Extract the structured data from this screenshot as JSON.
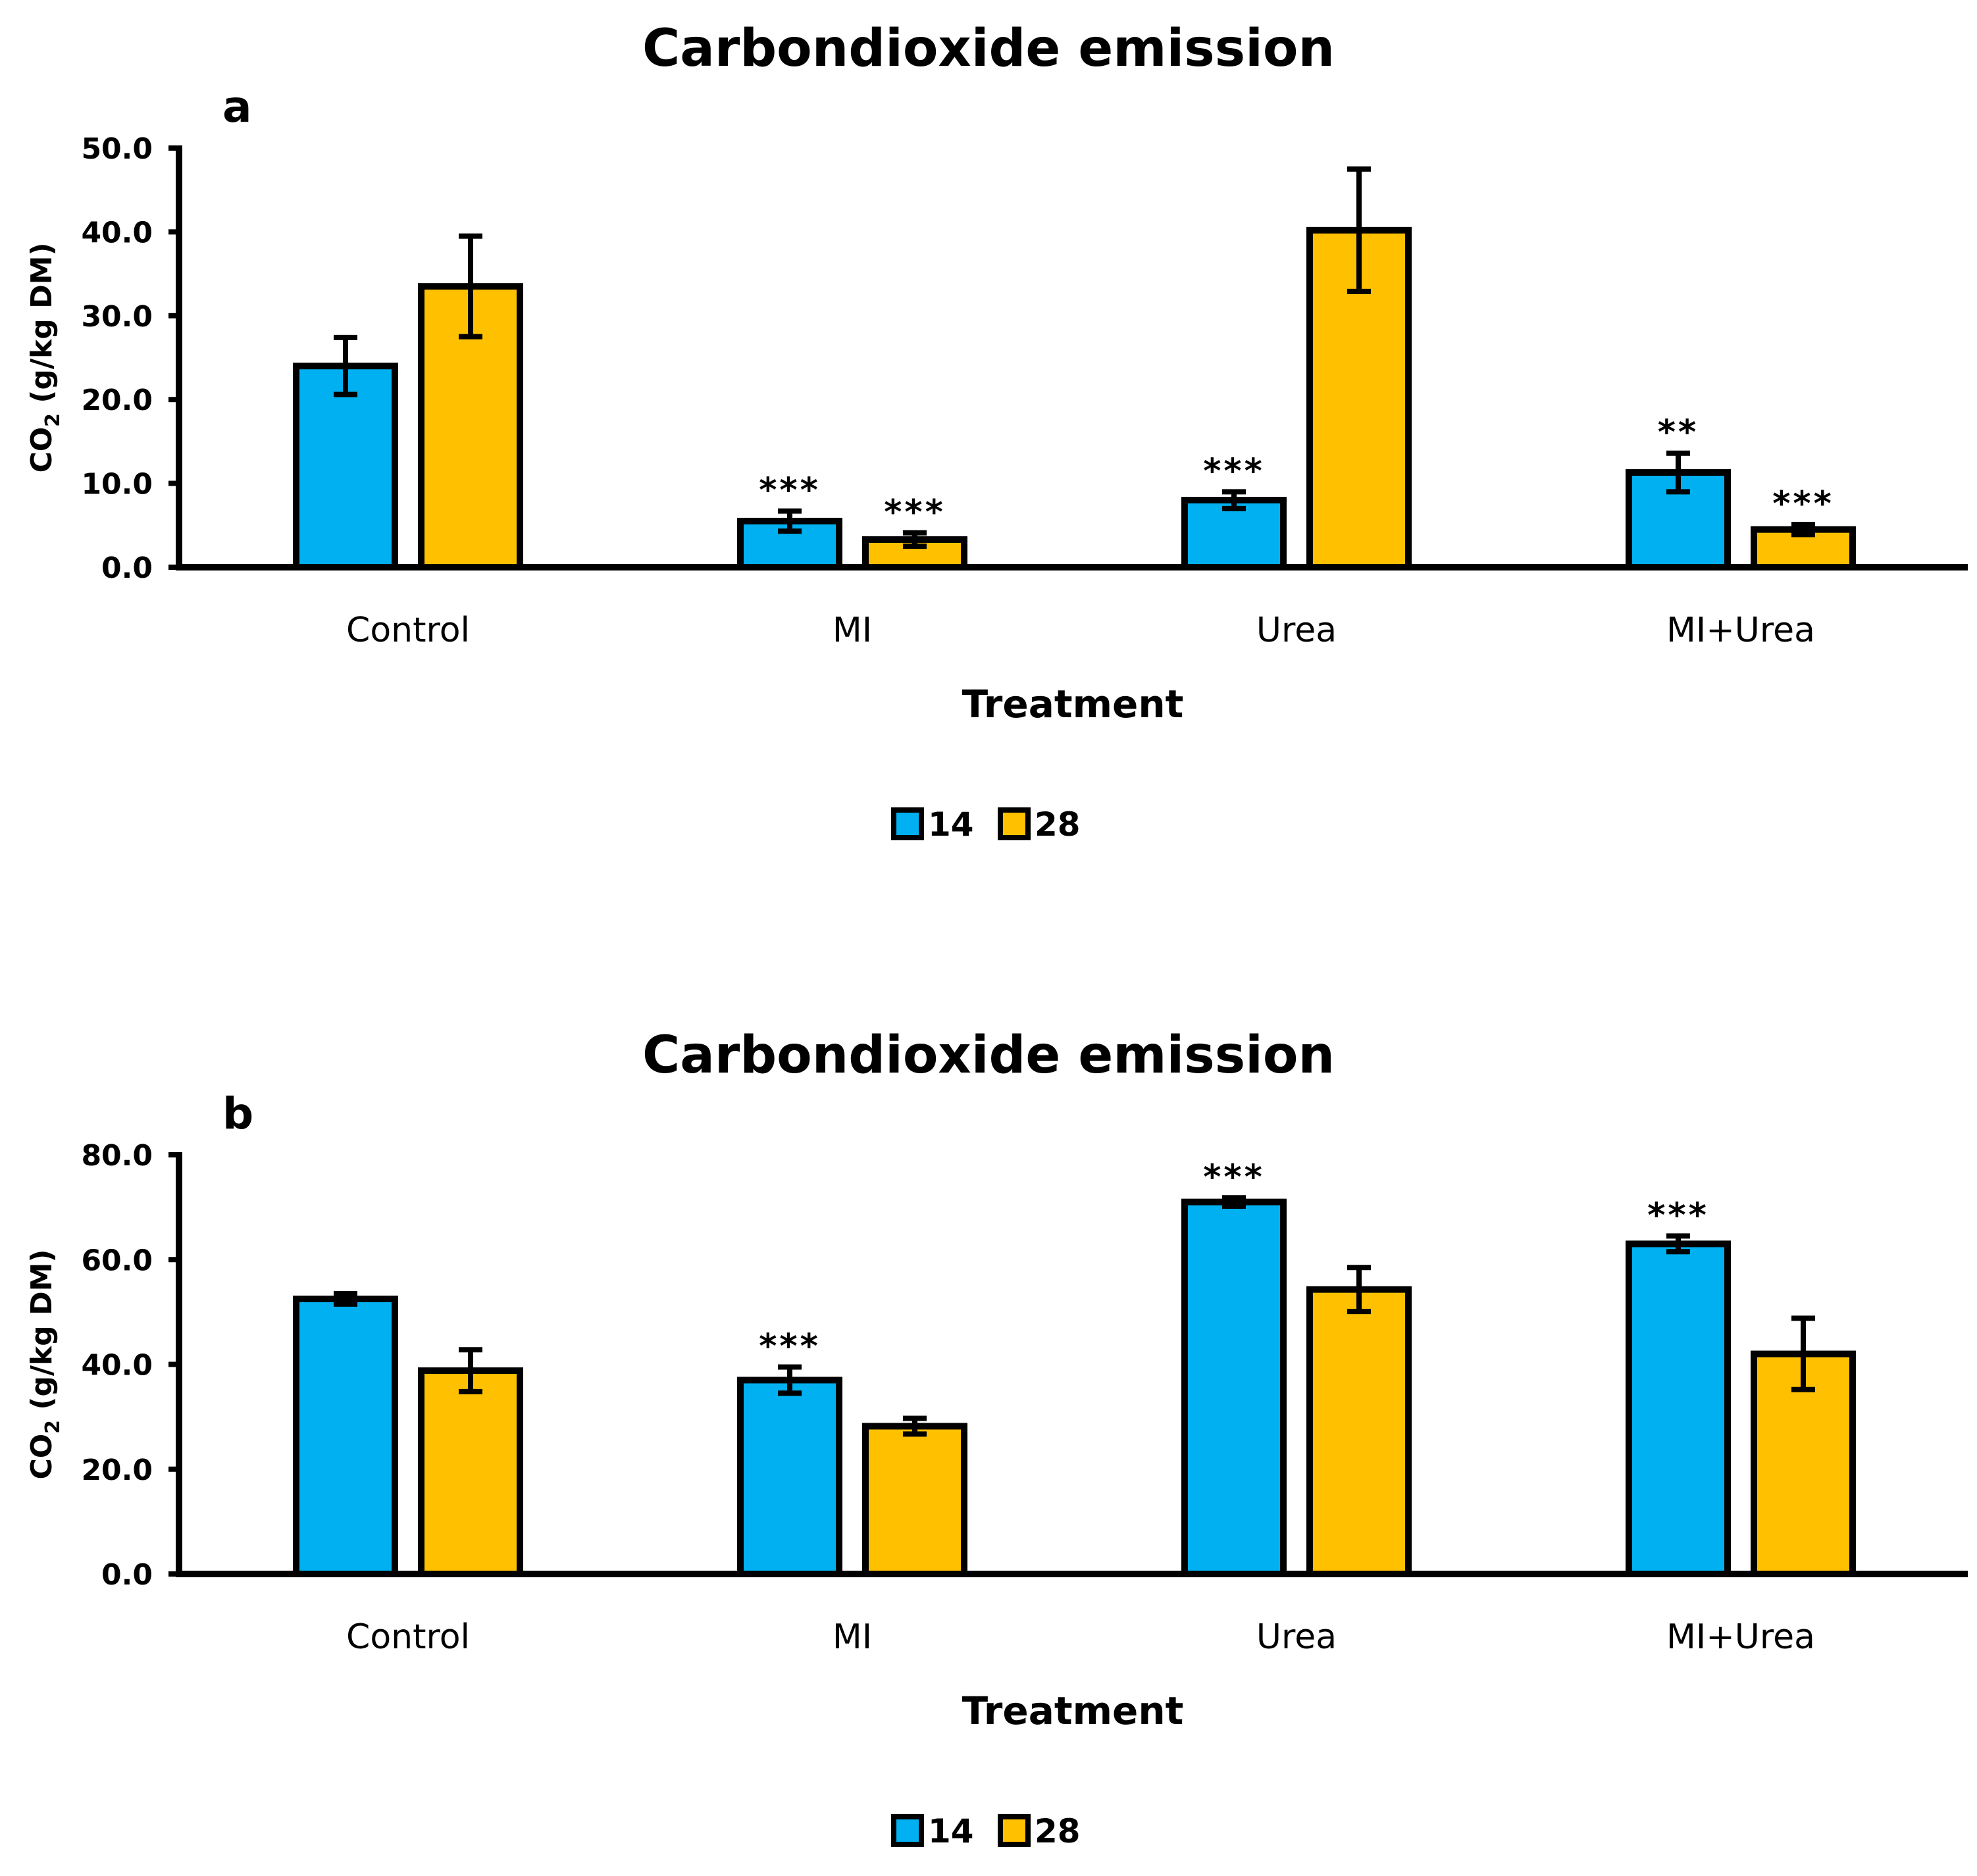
{
  "chart_data": [
    {
      "type": "bar",
      "panel_label": "a",
      "title": "Carbondioxide emission",
      "xlabel": "Treatment",
      "ylabel": {
        "prefix": "CO",
        "subscript": "2",
        "suffix": " (g/kg DM)"
      },
      "ylim": [
        0,
        50
      ],
      "yticks": [
        "0.0",
        "10.0",
        "20.0",
        "30.0",
        "40.0",
        "50.0"
      ],
      "categories": [
        "Control",
        "MI",
        "Urea",
        "MI+Urea"
      ],
      "series": [
        {
          "name": "14",
          "color": "#00B0F0",
          "values": [
            24.0,
            5.5,
            8.0,
            11.3
          ],
          "errors": [
            3.4,
            1.2,
            1.0,
            2.3
          ],
          "significance": [
            "",
            "***",
            "***",
            "**"
          ]
        },
        {
          "name": "28",
          "color": "#FFC000",
          "values": [
            33.5,
            3.3,
            40.2,
            4.5
          ],
          "errors": [
            6.0,
            0.8,
            7.3,
            0.6
          ],
          "significance": [
            "",
            "***",
            "",
            "***"
          ]
        }
      ],
      "legend_position": "bottom-center"
    },
    {
      "type": "bar",
      "panel_label": "b",
      "title": "Carbondioxide emission",
      "xlabel": "Treatment",
      "ylabel": {
        "prefix": "CO",
        "subscript": "2",
        "suffix": " (g/kg DM)"
      },
      "ylim": [
        0,
        80
      ],
      "yticks": [
        "0.0",
        "20.0",
        "40.0",
        "60.0",
        "80.0"
      ],
      "categories": [
        "Control",
        "MI",
        "Urea",
        "MI+Urea"
      ],
      "series": [
        {
          "name": "14",
          "color": "#00B0F0",
          "values": [
            52.5,
            37.0,
            71.0,
            63.0
          ],
          "errors": [
            1.0,
            2.5,
            0.8,
            1.5
          ],
          "significance": [
            "",
            "***",
            "***",
            "***"
          ]
        },
        {
          "name": "28",
          "color": "#FFC000",
          "values": [
            38.8,
            28.2,
            54.3,
            42.0
          ],
          "errors": [
            4.0,
            1.5,
            4.2,
            6.8
          ],
          "significance": [
            "",
            "",
            "",
            ""
          ]
        }
      ],
      "legend_position": "bottom-center"
    }
  ]
}
